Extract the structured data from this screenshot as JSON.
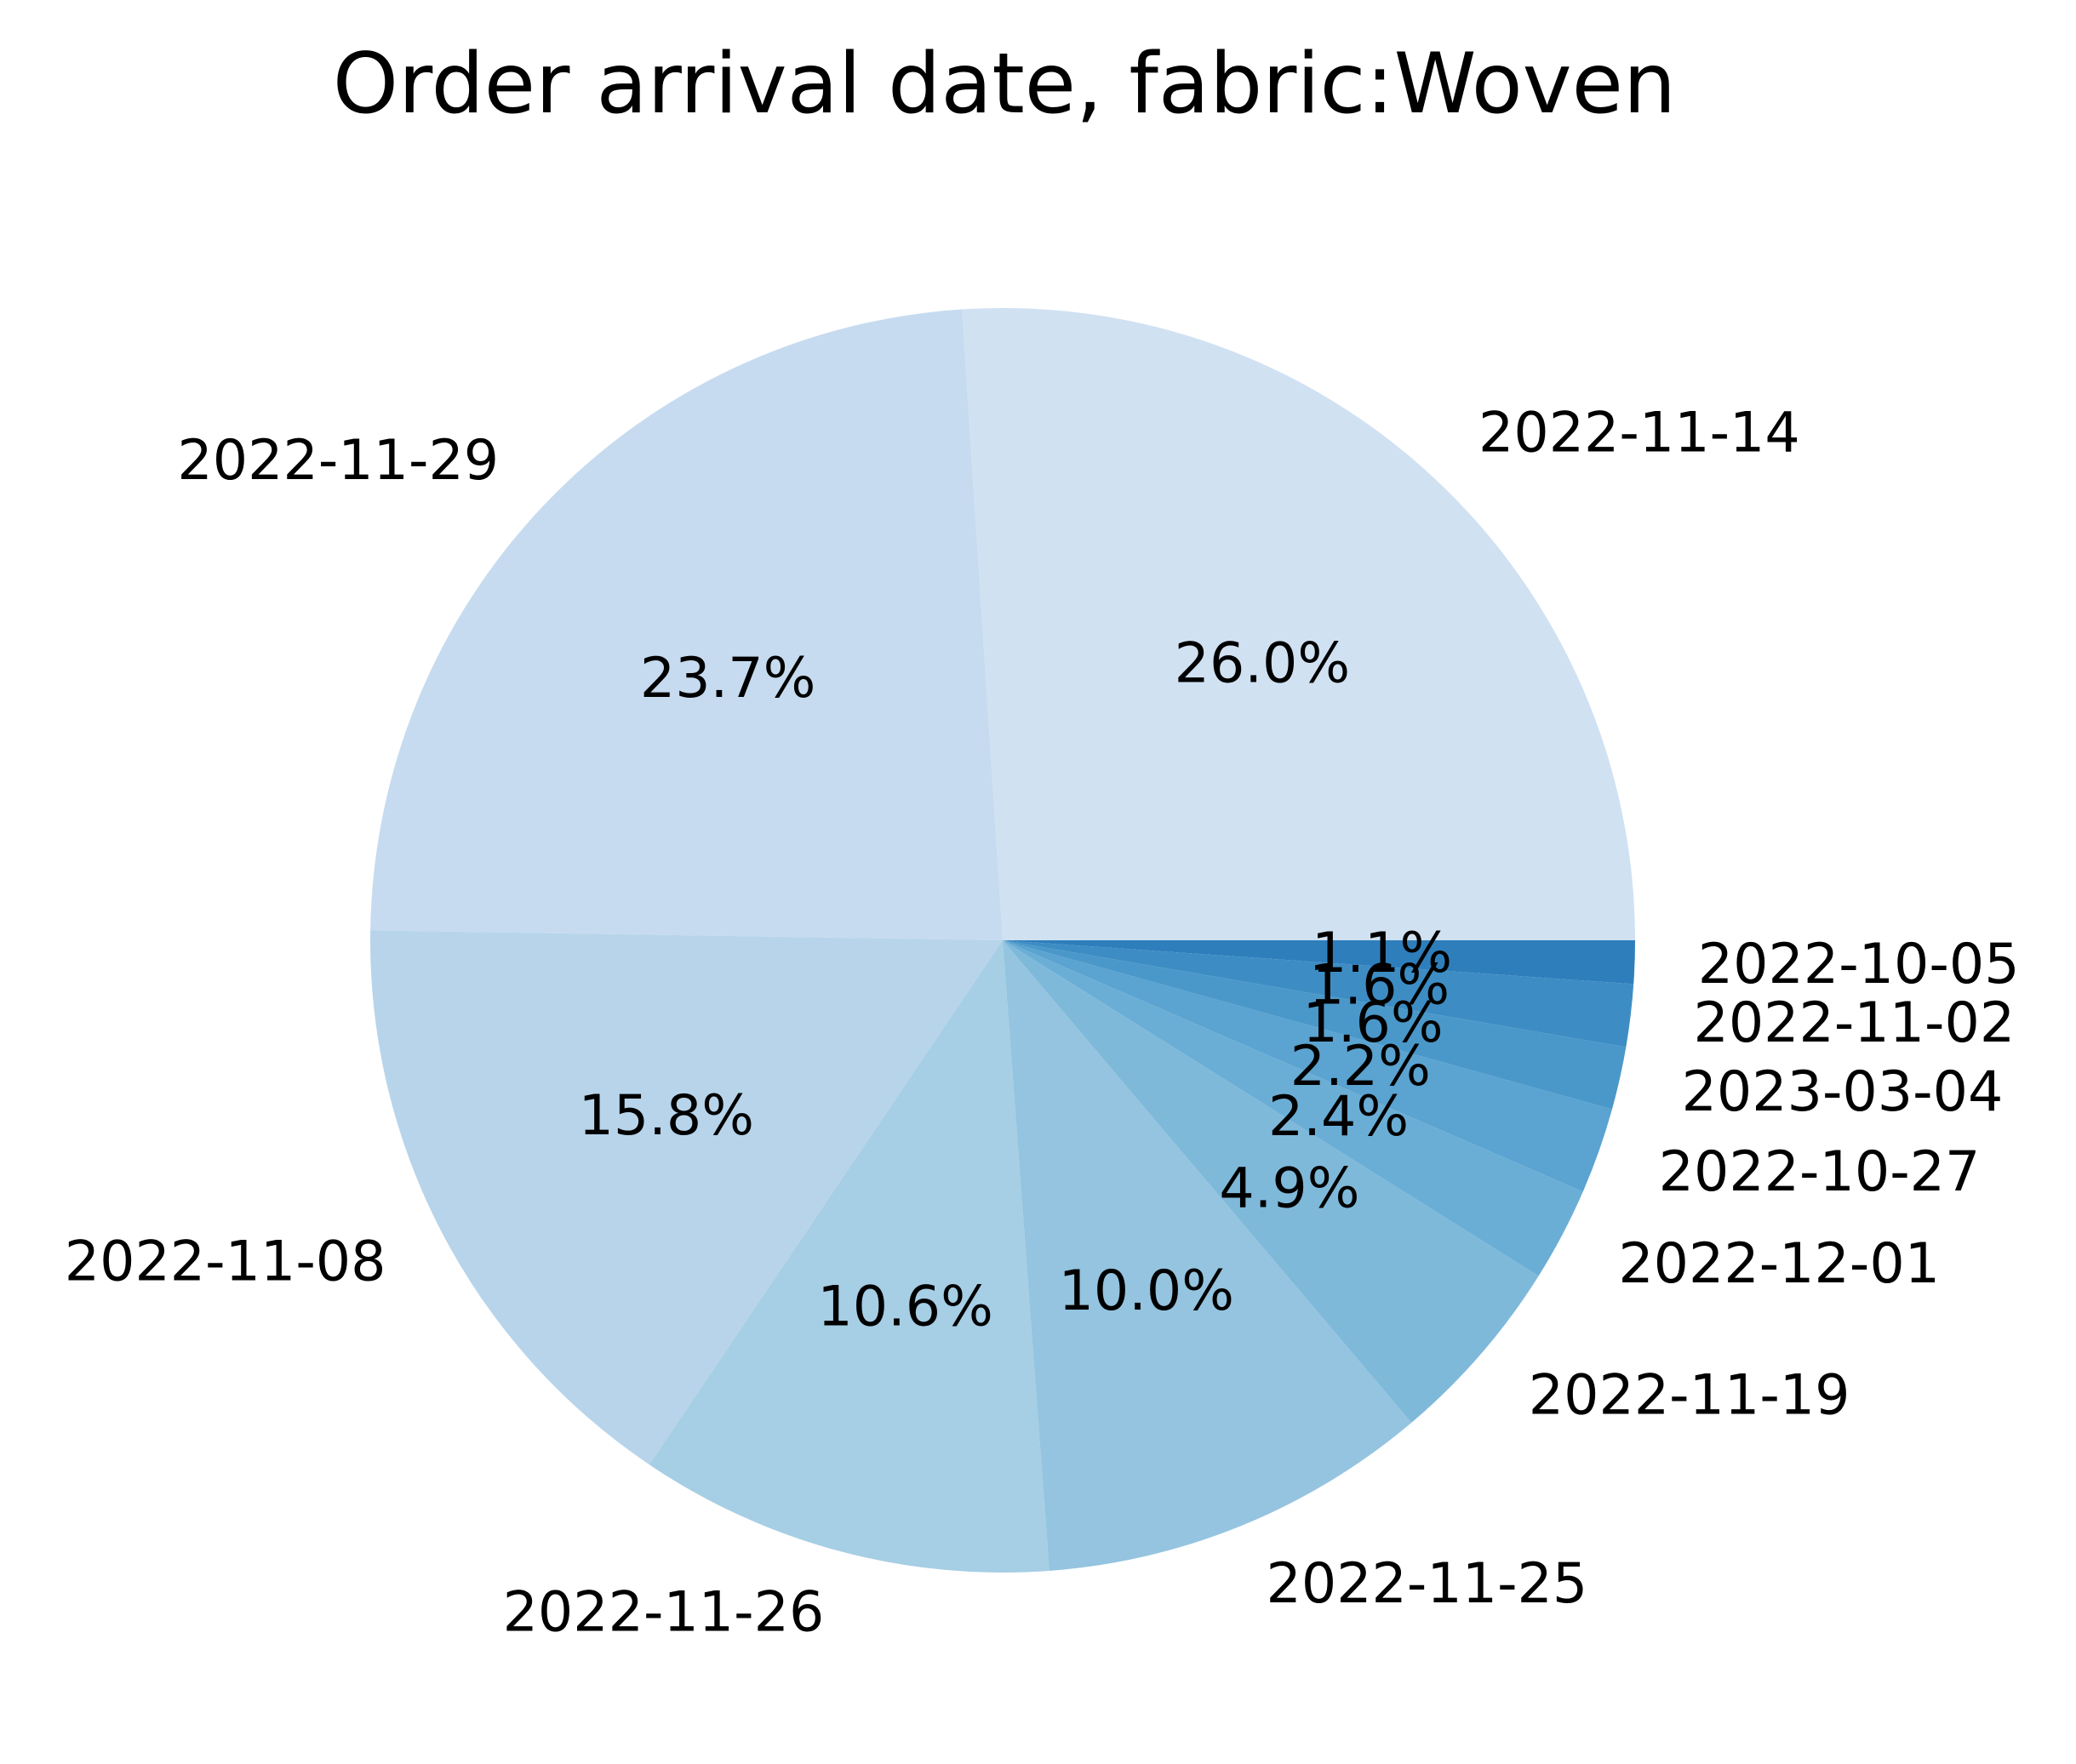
{
  "chart_data": {
    "type": "pie",
    "title": "Order arrival date, fabric:Woven",
    "slices": [
      {
        "label": "2022-11-14",
        "value": 26.0,
        "pct_label": "26.0%",
        "color": "#d0e1f2"
      },
      {
        "label": "2022-11-29",
        "value": 23.7,
        "pct_label": "23.7%",
        "color": "#c6dbef"
      },
      {
        "label": "2022-11-08",
        "value": 15.8,
        "pct_label": "15.8%",
        "color": "#b7d4ea"
      },
      {
        "label": "2022-11-26",
        "value": 10.6,
        "pct_label": "10.6%",
        "color": "#a6cee4"
      },
      {
        "label": "2022-11-25",
        "value": 10.0,
        "pct_label": "10.0%",
        "color": "#94c4df"
      },
      {
        "label": "2022-11-19",
        "value": 4.9,
        "pct_label": "4.9%",
        "color": "#7fb9da"
      },
      {
        "label": "2022-12-01",
        "value": 2.4,
        "pct_label": "2.4%",
        "color": "#6aaed6"
      },
      {
        "label": "2022-10-27",
        "value": 2.2,
        "pct_label": "2.2%",
        "color": "#5ba3d0"
      },
      {
        "label": "2023-03-04",
        "value": 1.6,
        "pct_label": "1.6%",
        "color": "#4a98c9"
      },
      {
        "label": "2022-11-02",
        "value": 1.6,
        "pct_label": "1.6%",
        "color": "#3d8dc4"
      },
      {
        "label": "2022-10-05",
        "value": 1.1,
        "pct_label": "1.1%",
        "color": "#2f7ebc"
      }
    ],
    "start_angle_deg": 0,
    "direction": "counterclockwise"
  }
}
